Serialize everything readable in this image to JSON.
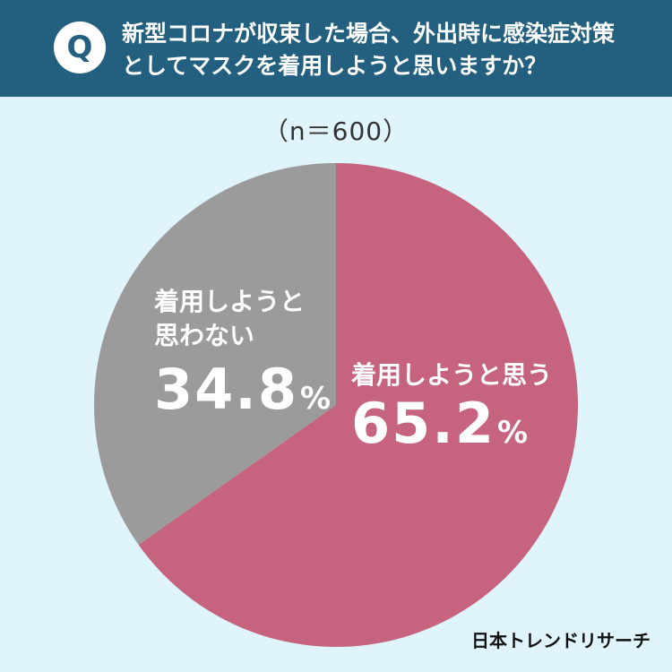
{
  "header": {
    "badge": "Q",
    "question_line1": "新型コロナが収束した場合、外出時に感染症対策",
    "question_line2": "としてマスクを着用しようと思いますか？"
  },
  "sample_size": "（n＝600）",
  "chart_data": {
    "type": "pie",
    "title": "",
    "start_angle_deg": 0,
    "direction": "clockwise",
    "unit": "%",
    "slices": [
      {
        "label": "着用しようと思う",
        "label_lines": [
          "着用しようと思う"
        ],
        "value": 65.2,
        "value_text": "65.2",
        "color": "#c6637f"
      },
      {
        "label": "着用しようと思わない",
        "label_lines": [
          "着用しようと",
          "思わない"
        ],
        "value": 34.8,
        "value_text": "34.8",
        "color": "#9b9b9b"
      }
    ]
  },
  "brand": "日本トレンドリサーチ"
}
